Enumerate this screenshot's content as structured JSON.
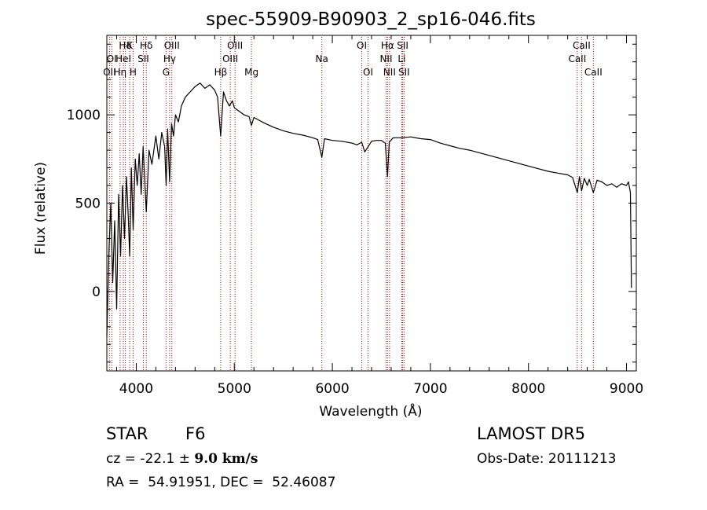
{
  "chart_data": {
    "type": "line",
    "title": "spec-55909-B90903_2_sp16-046.fits",
    "xlabel": "Wavelength (Å)",
    "ylabel": "Flux (relative)",
    "xlim": [
      3700,
      9100
    ],
    "ylim": [
      -450,
      1450
    ],
    "xticks": [
      4000,
      5000,
      6000,
      7000,
      8000,
      9000
    ],
    "yticks": [
      0,
      500,
      1000
    ],
    "grid": false,
    "line_color": "#000000",
    "marker_color": "#cc0000",
    "series": [
      {
        "x": [
          3700,
          3720,
          3740,
          3760,
          3780,
          3800,
          3820,
          3840,
          3860,
          3880,
          3900,
          3920,
          3933,
          3950,
          3968,
          3990,
          4010,
          4030,
          4050,
          4070,
          4102,
          4130,
          4160,
          4200,
          4230,
          4260,
          4290,
          4305,
          4320,
          4340,
          4360,
          4380,
          4400,
          4430,
          4460,
          4500,
          4550,
          4600,
          4650,
          4700,
          4750,
          4800,
          4830,
          4861,
          4890,
          4920,
          4950,
          4980,
          5000,
          5050,
          5100,
          5150,
          5175,
          5200,
          5250,
          5300,
          5400,
          5500,
          5600,
          5700,
          5800,
          5850,
          5893,
          5920,
          6000,
          6100,
          6200,
          6250,
          6300,
          6330,
          6400,
          6450,
          6500,
          6540,
          6563,
          6580,
          6620,
          6700,
          6800,
          6900,
          7000,
          7100,
          7200,
          7300,
          7400,
          7500,
          7600,
          7700,
          7800,
          7900,
          8000,
          8100,
          8200,
          8300,
          8400,
          8450,
          8498,
          8520,
          8542,
          8570,
          8600,
          8620,
          8662,
          8700,
          8750,
          8800,
          8850,
          8900,
          8950,
          9000,
          9020,
          9040,
          9050
        ],
        "y": [
          -250,
          200,
          500,
          50,
          400,
          -100,
          550,
          200,
          600,
          300,
          650,
          400,
          200,
          700,
          350,
          750,
          600,
          780,
          550,
          820,
          450,
          800,
          720,
          880,
          750,
          900,
          820,
          600,
          920,
          620,
          950,
          880,
          1000,
          960,
          1050,
          1100,
          1130,
          1160,
          1180,
          1150,
          1170,
          1140,
          1100,
          880,
          1130,
          1080,
          1050,
          1080,
          1040,
          1020,
          1000,
          990,
          940,
          985,
          970,
          955,
          930,
          910,
          895,
          885,
          870,
          860,
          760,
          865,
          855,
          850,
          840,
          830,
          845,
          790,
          850,
          855,
          855,
          840,
          650,
          845,
          870,
          870,
          875,
          865,
          860,
          840,
          825,
          810,
          800,
          785,
          770,
          755,
          740,
          725,
          710,
          695,
          680,
          670,
          660,
          645,
          560,
          650,
          570,
          640,
          600,
          635,
          560,
          630,
          620,
          600,
          610,
          590,
          610,
          600,
          620,
          560,
          20
        ]
      }
    ],
    "lines": [
      {
        "w": 3727,
        "labels": [
          "OII"
        ],
        "row": 3
      },
      {
        "w": 3750,
        "labels": [
          "OI"
        ],
        "row": 2
      },
      {
        "w": 3835,
        "labels": [
          "Hη"
        ],
        "row": 3
      },
      {
        "w": 3869,
        "labels": [
          "HeI"
        ],
        "row": 2
      },
      {
        "w": 3889,
        "labels": [
          "Hδ"
        ],
        "row": 1
      },
      {
        "w": 3933,
        "labels": [
          "K"
        ],
        "row": 1
      },
      {
        "w": 3968,
        "labels": [
          "H"
        ],
        "row": 3
      },
      {
        "w": 4072,
        "labels": [
          "SII"
        ],
        "row": 2
      },
      {
        "w": 4102,
        "labels": [
          "Hδ"
        ],
        "row": 1
      },
      {
        "w": 4304,
        "labels": [
          "G"
        ],
        "row": 3
      },
      {
        "w": 4340,
        "labels": [
          "Hγ"
        ],
        "row": 2
      },
      {
        "w": 4363,
        "labels": [
          "OIII"
        ],
        "row": 1
      },
      {
        "w": 4861,
        "labels": [
          "Hβ"
        ],
        "row": 3
      },
      {
        "w": 4959,
        "labels": [
          "OIII"
        ],
        "row": 2
      },
      {
        "w": 5007,
        "labels": [
          "OIII"
        ],
        "row": 1
      },
      {
        "w": 5175,
        "labels": [
          "Mg"
        ],
        "row": 3
      },
      {
        "w": 5893,
        "labels": [
          "Na"
        ],
        "row": 2
      },
      {
        "w": 6300,
        "labels": [
          "OI"
        ],
        "row": 1
      },
      {
        "w": 6364,
        "labels": [
          "OI"
        ],
        "row": 3
      },
      {
        "w": 6548,
        "labels": [
          "NII"
        ],
        "row": 2
      },
      {
        "w": 6563,
        "labels": [
          "Hα"
        ],
        "row": 1
      },
      {
        "w": 6583,
        "labels": [
          "NII"
        ],
        "row": 3
      },
      {
        "w": 6708,
        "labels": [
          "Li"
        ],
        "row": 2
      },
      {
        "w": 6717,
        "labels": [
          "SII"
        ],
        "row": 1
      },
      {
        "w": 6731,
        "labels": [
          "SII"
        ],
        "row": 3
      },
      {
        "w": 8498,
        "labels": [
          "CaII"
        ],
        "row": 2
      },
      {
        "w": 8542,
        "labels": [
          "CaII"
        ],
        "row": 1
      },
      {
        "w": 8662,
        "labels": [
          "CaII"
        ],
        "row": 3
      }
    ]
  },
  "info": {
    "class": "STAR",
    "subclass": "F6",
    "survey": "LAMOST DR5",
    "cz_prefix": "cz = -22.1 ± ",
    "cz_err": "9.0 km/s",
    "obs_date": "Obs-Date: 20111213",
    "coords": "RA =  54.91951, DEC =  52.46087"
  }
}
